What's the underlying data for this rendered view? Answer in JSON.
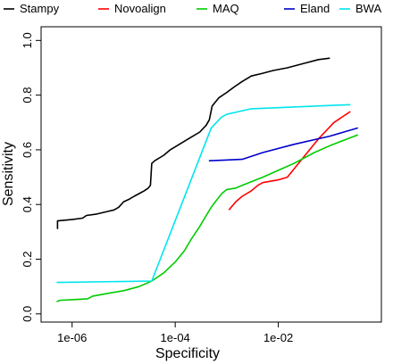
{
  "chart_data": {
    "type": "line",
    "title": "",
    "xlabel": "Specificity",
    "ylabel": "Sensitivity",
    "x_scale": "log",
    "xlim": [
      2.5e-07,
      1.0
    ],
    "ylim": [
      -0.03,
      1.05
    ],
    "x_ticks": [
      1e-06,
      0.0001,
      0.01
    ],
    "x_tick_labels": [
      "1e-06",
      "1e-04",
      "1e-02"
    ],
    "y_ticks": [
      0.0,
      0.2,
      0.4,
      0.6,
      0.8,
      1.0
    ],
    "y_tick_labels": [
      "0.0",
      "0.2",
      "0.4",
      "0.6",
      "0.8",
      "1.0"
    ],
    "grid": false,
    "legend_position": "top",
    "series": [
      {
        "name": "Stampy",
        "color": "#000000",
        "points": [
          [
            5.2e-07,
            0.31
          ],
          [
            5.2e-07,
            0.34
          ],
          [
            1e-06,
            0.345
          ],
          [
            1.6e-06,
            0.35
          ],
          [
            1.9e-06,
            0.36
          ],
          [
            3e-06,
            0.365
          ],
          [
            5e-06,
            0.375
          ],
          [
            6.5e-06,
            0.38
          ],
          [
            8e-06,
            0.39
          ],
          [
            1e-05,
            0.41
          ],
          [
            1.3e-05,
            0.42
          ],
          [
            1.6e-05,
            0.43
          ],
          [
            2e-05,
            0.44
          ],
          [
            2.5e-05,
            0.45
          ],
          [
            3e-05,
            0.46
          ],
          [
            3.3e-05,
            0.47
          ],
          [
            3.5e-05,
            0.55
          ],
          [
            4e-05,
            0.56
          ],
          [
            6e-05,
            0.58
          ],
          [
            8e-05,
            0.6
          ],
          [
            0.00012,
            0.62
          ],
          [
            0.0002,
            0.645
          ],
          [
            0.0003,
            0.665
          ],
          [
            0.0004,
            0.69
          ],
          [
            0.00046,
            0.71
          ],
          [
            0.00052,
            0.76
          ],
          [
            0.0007,
            0.79
          ],
          [
            0.001,
            0.81
          ],
          [
            0.0014,
            0.83
          ],
          [
            0.002,
            0.85
          ],
          [
            0.003,
            0.87
          ],
          [
            0.005,
            0.88
          ],
          [
            0.008,
            0.89
          ],
          [
            0.015,
            0.9
          ],
          [
            0.03,
            0.915
          ],
          [
            0.06,
            0.93
          ],
          [
            0.1,
            0.935
          ]
        ]
      },
      {
        "name": "Novoalign",
        "color": "#ff0000",
        "points": [
          [
            0.0011,
            0.38
          ],
          [
            0.0015,
            0.41
          ],
          [
            0.002,
            0.43
          ],
          [
            0.003,
            0.45
          ],
          [
            0.004,
            0.47
          ],
          [
            0.005,
            0.48
          ],
          [
            0.01,
            0.49
          ],
          [
            0.015,
            0.5
          ],
          [
            0.03,
            0.57
          ],
          [
            0.06,
            0.64
          ],
          [
            0.12,
            0.7
          ],
          [
            0.25,
            0.74
          ]
        ]
      },
      {
        "name": "MAQ",
        "color": "#00cc00",
        "points": [
          [
            5e-07,
            0.045
          ],
          [
            6e-07,
            0.05
          ],
          [
            1e-06,
            0.052
          ],
          [
            2e-06,
            0.055
          ],
          [
            2.5e-06,
            0.065
          ],
          [
            5e-06,
            0.075
          ],
          [
            1e-05,
            0.085
          ],
          [
            2e-05,
            0.1
          ],
          [
            3.5e-05,
            0.12
          ],
          [
            6e-05,
            0.15
          ],
          [
            0.0001,
            0.19
          ],
          [
            0.00015,
            0.23
          ],
          [
            0.0002,
            0.27
          ],
          [
            0.0003,
            0.32
          ],
          [
            0.0004,
            0.36
          ],
          [
            0.0005,
            0.39
          ],
          [
            0.0006,
            0.41
          ],
          [
            0.0008,
            0.44
          ],
          [
            0.001,
            0.455
          ],
          [
            0.0015,
            0.46
          ],
          [
            0.002,
            0.47
          ],
          [
            0.005,
            0.5
          ],
          [
            0.01,
            0.525
          ],
          [
            0.02,
            0.55
          ],
          [
            0.05,
            0.59
          ],
          [
            0.1,
            0.615
          ],
          [
            0.35,
            0.655
          ]
        ]
      },
      {
        "name": "Eland",
        "color": "#0000cc",
        "points": [
          [
            0.00045,
            0.56
          ],
          [
            0.002,
            0.565
          ],
          [
            0.005,
            0.59
          ],
          [
            0.02,
            0.62
          ],
          [
            0.1,
            0.65
          ],
          [
            0.35,
            0.68
          ]
        ]
      },
      {
        "name": "BWA",
        "color": "#00e5ee",
        "points": [
          [
            5e-07,
            0.115
          ],
          [
            3.5e-05,
            0.12
          ],
          [
            0.0005,
            0.68
          ],
          [
            0.0008,
            0.72
          ],
          [
            0.001,
            0.73
          ],
          [
            0.003,
            0.75
          ],
          [
            0.25,
            0.765
          ]
        ]
      }
    ]
  }
}
